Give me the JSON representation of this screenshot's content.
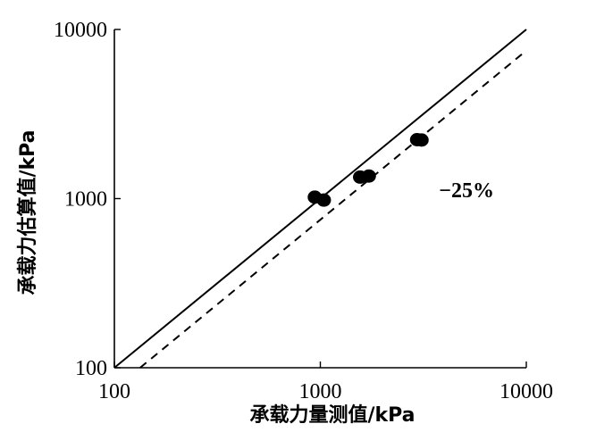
{
  "chart_data": {
    "type": "scatter",
    "scale": "log-log",
    "xlabel": "承载力量测值/kPa",
    "ylabel": "承载力估算值/kPa",
    "xlim": [
      100,
      10000
    ],
    "ylim": [
      100,
      10000
    ],
    "x_ticks": [
      "100",
      "1000",
      "10000"
    ],
    "y_ticks": [
      "100",
      "1000",
      "10000"
    ],
    "x_tick_values": [
      100,
      1000,
      10000
    ],
    "y_tick_values": [
      100,
      1000,
      10000
    ],
    "points": [
      {
        "x": 940,
        "y": 1020
      },
      {
        "x": 1040,
        "y": 980
      },
      {
        "x": 1560,
        "y": 1340
      },
      {
        "x": 1720,
        "y": 1360
      },
      {
        "x": 2950,
        "y": 2230
      },
      {
        "x": 3100,
        "y": 2220
      }
    ],
    "lines": [
      {
        "kind": "solid",
        "ratio": 1.0
      },
      {
        "kind": "dashed",
        "ratio": 0.75,
        "label": "−25%"
      }
    ],
    "annotation": {
      "text": "−25%",
      "x": 4600,
      "y": 1120
    }
  }
}
